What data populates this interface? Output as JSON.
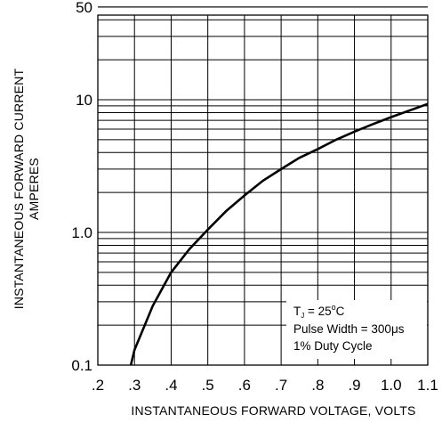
{
  "chart_data": {
    "type": "line",
    "title": "",
    "xlabel": "INSTANTANEOUS FORWARD VOLTAGE, VOLTS",
    "ylabel": "INSTANTANEOUS FORWARD CURRENT",
    "ylabel_units": "AMPERES",
    "xlim": [
      0.2,
      1.1
    ],
    "ylim": [
      0.1,
      50
    ],
    "yscale": "log",
    "grid": true,
    "x_tick_labels": [
      ".2",
      ".3",
      ".4",
      ".5",
      ".6",
      ".7",
      ".8",
      ".9",
      "1.0",
      "1.1"
    ],
    "x_tick_values": [
      0.2,
      0.3,
      0.4,
      0.5,
      0.6,
      0.7,
      0.8,
      0.9,
      1.0,
      1.1
    ],
    "y_tick_labels": [
      "0.1",
      "1.0",
      "10",
      "50"
    ],
    "y_tick_values": [
      0.1,
      1.0,
      10,
      50
    ],
    "series": [
      {
        "x": [
          0.29,
          0.3,
          0.35,
          0.4,
          0.45,
          0.5,
          0.55,
          0.6,
          0.65,
          0.7,
          0.75,
          0.8,
          0.85,
          0.9,
          0.95,
          1.0,
          1.05,
          1.1
        ],
        "y": [
          0.1,
          0.13,
          0.28,
          0.5,
          0.75,
          1.05,
          1.45,
          1.9,
          2.45,
          3.0,
          3.65,
          4.25,
          5.0,
          5.75,
          6.55,
          7.4,
          8.3,
          9.3
        ]
      }
    ],
    "annotation": {
      "line1_prefix": "T",
      "line1_sub": "J",
      "line1_mid": " = 25",
      "line1_sup": "o",
      "line1_suffix": "C",
      "line2": "Pulse Width = 300μs",
      "line3": "1% Duty Cycle"
    }
  }
}
